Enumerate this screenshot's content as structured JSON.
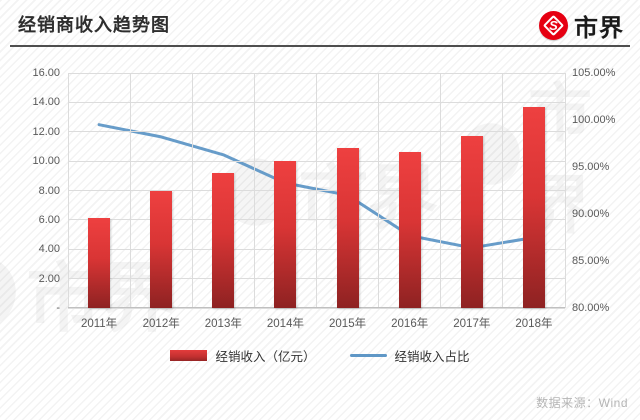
{
  "header": {
    "title": "经销商收入趋势图",
    "logo_text": "市界",
    "logo_glyph": "S"
  },
  "footer": {
    "source": "数据来源：Wind"
  },
  "watermark_text": "市界",
  "colors": {
    "bar_top": "#ee4040",
    "bar_bottom": "#8e2222",
    "line": "#5f97c6",
    "grid": "#dcdcdc",
    "axis_text": "#595959",
    "logo_red": "#e60012",
    "source_text": "#b5b5b5"
  },
  "chart_data": {
    "type": "bar",
    "subtype": "bar+line dual axis",
    "title": "经销商收入趋势图",
    "categories": [
      "2011年",
      "2012年",
      "2013年",
      "2014年",
      "2015年",
      "2016年",
      "2017年",
      "2018年"
    ],
    "series": [
      {
        "name": "经销收入（亿元）",
        "type": "bar",
        "axis": "left",
        "values": [
          6.1,
          8.0,
          9.2,
          10.0,
          10.9,
          10.6,
          11.7,
          13.7
        ]
      },
      {
        "name": "经销收入占比",
        "type": "line",
        "axis": "right",
        "values": [
          99.5,
          98.2,
          96.3,
          93.3,
          92.0,
          87.7,
          86.4,
          87.5
        ]
      }
    ],
    "left_axis": {
      "min": 0,
      "max": 16,
      "step": 2,
      "tick_labels": [
        "16.00",
        "14.00",
        "12.00",
        "10.00",
        "8.00",
        "6.00",
        "4.00",
        "2.00",
        "-"
      ]
    },
    "right_axis": {
      "min": 80,
      "max": 105,
      "step": 5,
      "tick_labels": [
        "105.00%",
        "100.00%",
        "95.00%",
        "90.00%",
        "85.00%",
        "80.00%"
      ]
    },
    "grid": true,
    "legend_position": "bottom",
    "xlabel": "",
    "ylabel_left": "经销收入（亿元）",
    "ylabel_right": "经销收入占比"
  }
}
